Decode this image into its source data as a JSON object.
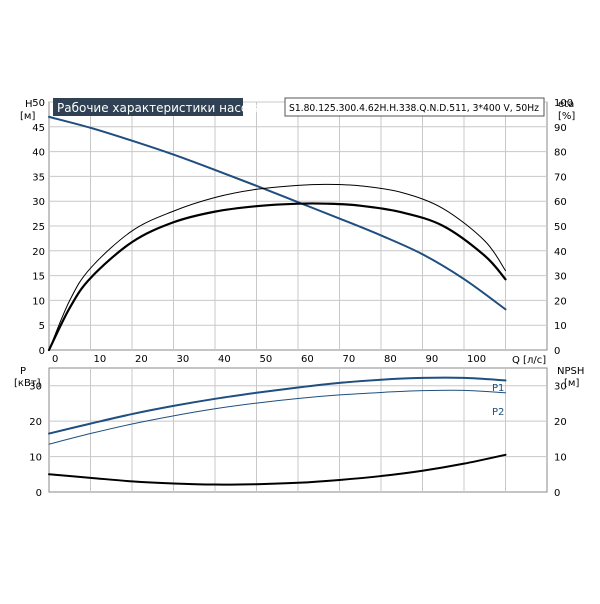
{
  "chart_data": [
    {
      "type": "line",
      "title": "Рабочие характеристики насоса",
      "subtitle": "S1.80.125.300.4.62H.H.338.Q.N.D.511, 3*400 V, 50Hz",
      "xlabel": "Q [л/с]",
      "ylabel_left": {
        "name": "H",
        "unit": "[м]"
      },
      "ylabel_right": {
        "name": "eta",
        "unit": "[%]"
      },
      "xlim": [
        0,
        120
      ],
      "ylim_left": [
        0,
        50
      ],
      "ylim_right": [
        0,
        100
      ],
      "x_ticks": [
        "0",
        "10",
        "20",
        "30",
        "40",
        "50",
        "60",
        "70",
        "80",
        "90",
        "100"
      ],
      "y_ticks_left": [
        "0",
        "5",
        "10",
        "15",
        "20",
        "25",
        "30",
        "35",
        "40",
        "45",
        "50"
      ],
      "y_ticks_right": [
        "0",
        "10",
        "20",
        "30",
        "40",
        "50",
        "60",
        "70",
        "80",
        "90",
        "100"
      ],
      "grid": true,
      "series": [
        {
          "axis": "left",
          "color": "#1f4e80",
          "width": 2,
          "x": [
            0,
            10,
            20,
            30,
            40,
            50,
            60,
            70,
            80,
            90,
            100,
            110
          ],
          "y": [
            47,
            44.8,
            42.2,
            39.4,
            36.3,
            33.1,
            29.8,
            26.5,
            23.1,
            19.3,
            14.3,
            8.2
          ]
        },
        {
          "axis": "right",
          "color": "#000000",
          "width": 1,
          "x": [
            0,
            5,
            10,
            20,
            30,
            40,
            50,
            60,
            67,
            75,
            85,
            95,
            105,
            110
          ],
          "y": [
            0,
            20,
            33,
            48,
            56,
            61.5,
            64.8,
            66.4,
            66.8,
            66.2,
            63.5,
            57,
            44,
            32
          ]
        },
        {
          "axis": "right",
          "color": "#000000",
          "width": 2.2,
          "x": [
            0,
            5,
            10,
            20,
            30,
            40,
            50,
            60,
            67,
            75,
            85,
            95,
            105,
            110
          ],
          "y": [
            0,
            17,
            29,
            43.5,
            51.5,
            55.8,
            58,
            59,
            59,
            58.2,
            55.5,
            50,
            38,
            28.5
          ]
        }
      ]
    },
    {
      "type": "line",
      "xlim": [
        0,
        120
      ],
      "ylabel_left": {
        "name": "P",
        "unit": "[кВт]"
      },
      "ylabel_right": {
        "name": "NPSH",
        "unit": "[м]"
      },
      "ylim_left": [
        0,
        35
      ],
      "ylim_right": [
        0,
        35
      ],
      "y_ticks_left": [
        "0",
        "10",
        "20",
        "30"
      ],
      "y_ticks_right": [
        "0",
        "10",
        "20",
        "30"
      ],
      "grid": true,
      "series": [
        {
          "name": "P1",
          "axis": "left",
          "color": "#1f4e80",
          "width": 2,
          "x": [
            0,
            10,
            20,
            30,
            40,
            50,
            60,
            70,
            80,
            90,
            100,
            110
          ],
          "y": [
            16.5,
            19.3,
            22,
            24.3,
            26.3,
            28,
            29.5,
            30.8,
            31.7,
            32.2,
            32.2,
            31.5
          ]
        },
        {
          "name": "P2",
          "axis": "left",
          "color": "#1f4e80",
          "width": 1,
          "x": [
            0,
            10,
            20,
            30,
            40,
            50,
            60,
            70,
            80,
            90,
            100,
            110
          ],
          "y": [
            13.5,
            16.5,
            19.2,
            21.5,
            23.5,
            25.1,
            26.4,
            27.4,
            28.1,
            28.6,
            28.7,
            28
          ]
        },
        {
          "axis": "right",
          "color": "#000000",
          "width": 2,
          "x": [
            0,
            10,
            20,
            30,
            40,
            50,
            60,
            70,
            80,
            90,
            100,
            110
          ],
          "y": [
            5,
            4,
            3,
            2.4,
            2.1,
            2.2,
            2.6,
            3.4,
            4.5,
            6,
            8,
            10.5
          ]
        }
      ]
    }
  ]
}
